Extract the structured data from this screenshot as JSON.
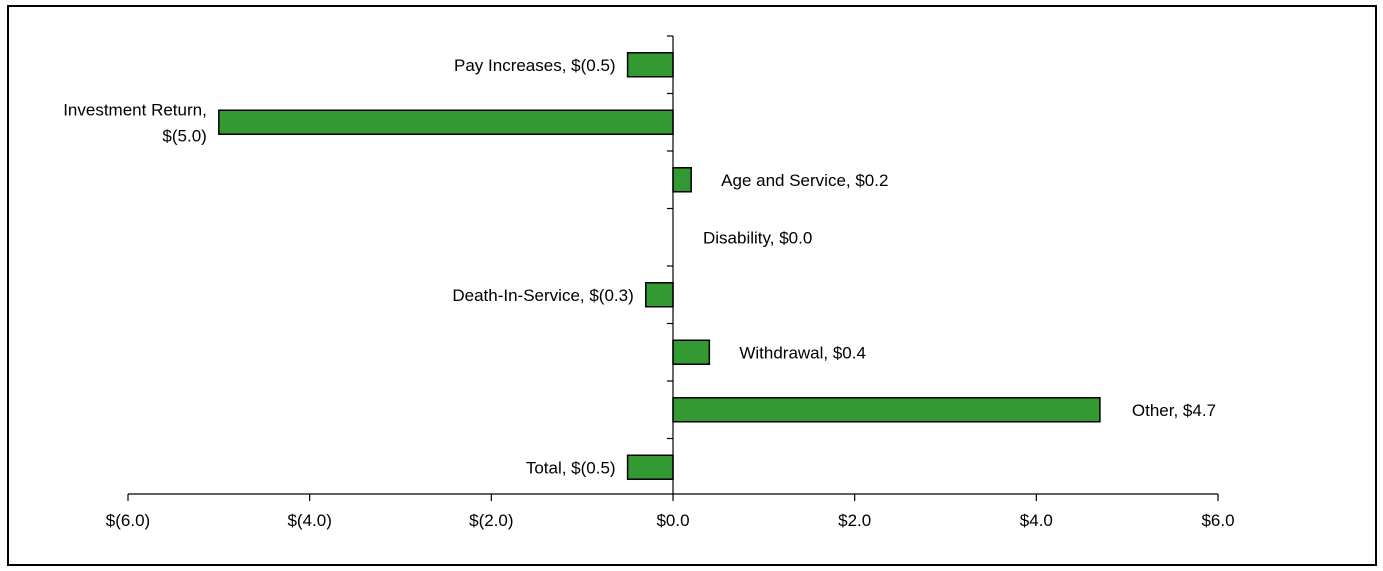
{
  "chart_data": {
    "type": "bar",
    "orientation": "horizontal",
    "title": "",
    "xlabel": "",
    "ylabel": "",
    "xlim": [
      -6,
      6
    ],
    "x_ticks": [
      -6,
      -4,
      -2,
      0,
      2,
      4,
      6
    ],
    "x_tick_labels": [
      "$(6.0)",
      "$(4.0)",
      "$(2.0)",
      "$0.0",
      "$2.0",
      "$4.0",
      "$6.0"
    ],
    "categories": [
      "Pay Increases",
      "Investment Return",
      "Age and Service",
      "Disability",
      "Death-In-Service",
      "Withdrawal",
      "Other",
      "Total"
    ],
    "values": [
      -0.5,
      -5.0,
      0.2,
      0.0,
      -0.3,
      0.4,
      4.7,
      -0.5
    ],
    "data_labels": [
      [
        "Pay Increases, $(0.5)"
      ],
      [
        "Investment Return,",
        "$(5.0)"
      ],
      [
        "Age and Service, $0.2"
      ],
      [
        "Disability, $0.0"
      ],
      [
        "Death-In-Service, $(0.3)"
      ],
      [
        "Withdrawal, $0.4"
      ],
      [
        "Other, $4.7"
      ],
      [
        "Total, $(0.5)"
      ]
    ],
    "bar_color": "#339933",
    "bar_edge_color": "#000000",
    "grid": false,
    "legend": "none"
  }
}
